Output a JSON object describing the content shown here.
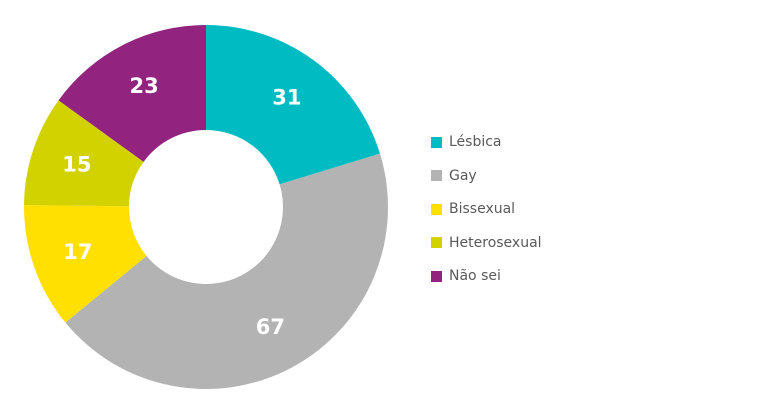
{
  "chart_data": {
    "type": "pie",
    "style": "donut",
    "categories": [
      "Lésbica",
      "Gay",
      "Bissexual",
      "Heterosexual",
      "Não sei"
    ],
    "values": [
      31,
      67,
      17,
      15,
      23
    ],
    "colors": [
      "#00bcc2",
      "#b3b3b3",
      "#ffe000",
      "#d2d200",
      "#92237e"
    ],
    "data_labels": [
      "31",
      "67",
      "17",
      "15",
      "23"
    ],
    "start_angle": "top",
    "direction": "clockwise",
    "legend_position": "right"
  },
  "legend": {
    "items": [
      {
        "label": "Lésbica",
        "color": "#00bcc2"
      },
      {
        "label": "Gay",
        "color": "#b3b3b3"
      },
      {
        "label": "Bissexual",
        "color": "#ffe000"
      },
      {
        "label": "Heterosexual",
        "color": "#d2d200"
      },
      {
        "label": "Não sei",
        "color": "#92237e"
      }
    ]
  }
}
